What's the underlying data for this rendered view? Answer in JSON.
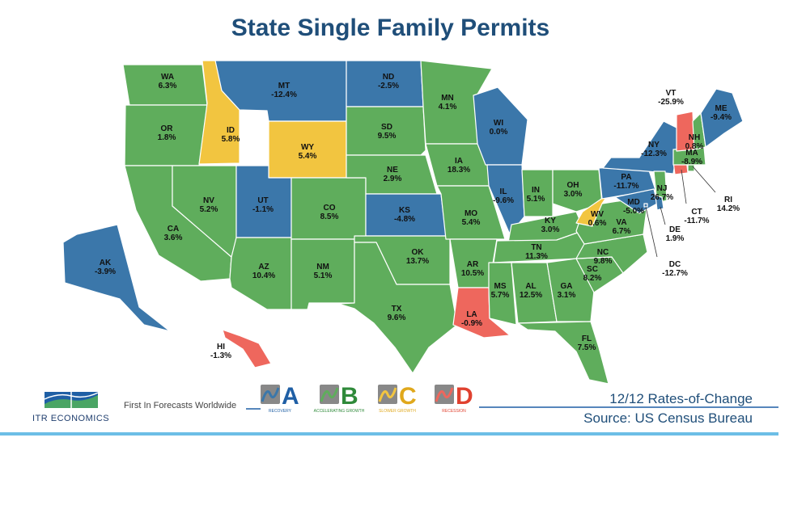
{
  "title": "State Single Family Permits",
  "colors": {
    "recovery": "#3b77aa",
    "accelerating_growth": "#5fad5c",
    "slower_growth": "#f2c540",
    "recession": "#ee675d",
    "title": "#1f4e79",
    "rule": "#6cbee6"
  },
  "states": [
    {
      "code": "WA",
      "value": "6.3%",
      "phase": "B"
    },
    {
      "code": "OR",
      "value": "1.8%",
      "phase": "B"
    },
    {
      "code": "CA",
      "value": "3.6%",
      "phase": "B"
    },
    {
      "code": "ID",
      "value": "5.8%",
      "phase": "C"
    },
    {
      "code": "NV",
      "value": "5.2%",
      "phase": "B"
    },
    {
      "code": "MT",
      "value": "-12.4%",
      "phase": "A"
    },
    {
      "code": "WY",
      "value": "5.4%",
      "phase": "C"
    },
    {
      "code": "UT",
      "value": "-1.1%",
      "phase": "A"
    },
    {
      "code": "AZ",
      "value": "10.4%",
      "phase": "B"
    },
    {
      "code": "CO",
      "value": "8.5%",
      "phase": "B"
    },
    {
      "code": "NM",
      "value": "5.1%",
      "phase": "B"
    },
    {
      "code": "ND",
      "value": "-2.5%",
      "phase": "A"
    },
    {
      "code": "SD",
      "value": "9.5%",
      "phase": "B"
    },
    {
      "code": "NE",
      "value": "2.9%",
      "phase": "B"
    },
    {
      "code": "KS",
      "value": "-4.8%",
      "phase": "A"
    },
    {
      "code": "OK",
      "value": "13.7%",
      "phase": "B"
    },
    {
      "code": "TX",
      "value": "9.6%",
      "phase": "B"
    },
    {
      "code": "MN",
      "value": "4.1%",
      "phase": "B"
    },
    {
      "code": "IA",
      "value": "18.3%",
      "phase": "B"
    },
    {
      "code": "MO",
      "value": "5.4%",
      "phase": "B"
    },
    {
      "code": "AR",
      "value": "10.5%",
      "phase": "B"
    },
    {
      "code": "LA",
      "value": "-0.9%",
      "phase": "D"
    },
    {
      "code": "WI",
      "value": "0.0%",
      "phase": "A"
    },
    {
      "code": "IL",
      "value": "-9.6%",
      "phase": "A"
    },
    {
      "code": "IN",
      "value": "5.1%",
      "phase": "B"
    },
    {
      "code": "OH",
      "value": "3.0%",
      "phase": "B"
    },
    {
      "code": "KY",
      "value": "3.0%",
      "phase": "B"
    },
    {
      "code": "TN",
      "value": "11.3%",
      "phase": "B"
    },
    {
      "code": "MS",
      "value": "5.7%",
      "phase": "B"
    },
    {
      "code": "AL",
      "value": "12.5%",
      "phase": "B"
    },
    {
      "code": "GA",
      "value": "3.1%",
      "phase": "B"
    },
    {
      "code": "FL",
      "value": "7.5%",
      "phase": "B"
    },
    {
      "code": "SC",
      "value": "8.2%",
      "phase": "B"
    },
    {
      "code": "NC",
      "value": "9.8%",
      "phase": "B"
    },
    {
      "code": "VA",
      "value": "6.7%",
      "phase": "B"
    },
    {
      "code": "WV",
      "value": "0.6%",
      "phase": "C"
    },
    {
      "code": "PA",
      "value": "-11.7%",
      "phase": "A"
    },
    {
      "code": "NY",
      "value": "-12.3%",
      "phase": "A"
    },
    {
      "code": "NJ",
      "value": "26.7%",
      "phase": "B"
    },
    {
      "code": "MD",
      "value": "-5.0%",
      "phase": "A"
    },
    {
      "code": "DE",
      "value": "1.9%",
      "phase": "A"
    },
    {
      "code": "DC",
      "value": "-12.7%",
      "phase": "A"
    },
    {
      "code": "CT",
      "value": "-11.7%",
      "phase": "D"
    },
    {
      "code": "RI",
      "value": "14.2%",
      "phase": "B"
    },
    {
      "code": "MA",
      "value": "-8.9%",
      "phase": "B"
    },
    {
      "code": "VT",
      "value": "-25.9%",
      "phase": "D"
    },
    {
      "code": "NH",
      "value": "0.8%",
      "phase": "B"
    },
    {
      "code": "ME",
      "value": "-9.4%",
      "phase": "A"
    },
    {
      "code": "AK",
      "value": "-3.9%",
      "phase": "A"
    },
    {
      "code": "HI",
      "value": "-1.3%",
      "phase": "D"
    }
  ],
  "footer": {
    "company": "ITR ECONOMICS",
    "tagline": "First In Forecasts Worldwide",
    "phases": [
      {
        "letter": "A",
        "name": "RECOVERY"
      },
      {
        "letter": "B",
        "name": "ACCELERATING GROWTH"
      },
      {
        "letter": "C",
        "name": "SLOWER GROWTH"
      },
      {
        "letter": "D",
        "name": "RECESSION"
      }
    ],
    "rate_label": "12/12 Rates-of-Change",
    "source": "Source: US Census Bureau"
  }
}
